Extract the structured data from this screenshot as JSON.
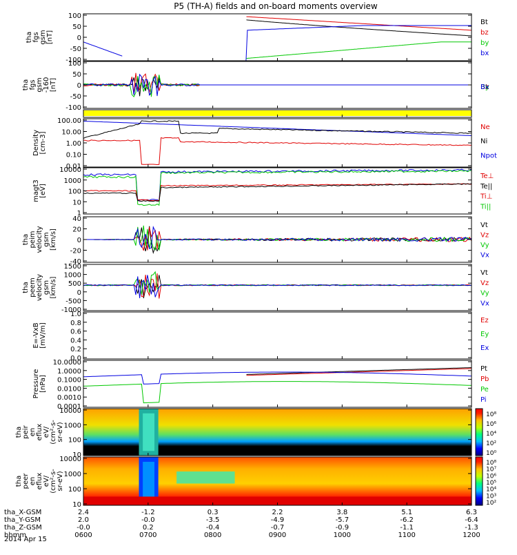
{
  "title": "P5 (TH-A) fields and on-board moments overview",
  "colors": {
    "black": "#000000",
    "red": "#e00000",
    "green": "#00c800",
    "blue": "#0000e0",
    "yellow": "#ffff00"
  },
  "panels": [
    {
      "ylabel": [
        "tha",
        "fgs",
        "gsm",
        "[nT]"
      ],
      "ticks": [
        "100",
        "50",
        "0",
        "-50",
        "-100"
      ],
      "legend": [
        {
          "t": "Bt",
          "c": "black"
        },
        {
          "t": "bz",
          "c": "red"
        },
        {
          "t": "by",
          "c": "green"
        },
        {
          "t": "bx",
          "c": "blue"
        }
      ]
    },
    {
      "ylabel": [
        "tha",
        "fgs",
        "gsm",
        "-160",
        "[nT]"
      ],
      "ticks": [
        "100",
        "50",
        "0",
        "-50",
        "-100"
      ],
      "legend": [
        {
          "t": "Bt",
          "c": "black"
        },
        {
          "t": "Bz",
          "c": "red"
        },
        {
          "t": "By",
          "c": "green"
        },
        {
          "t": "Bx",
          "c": "blue"
        }
      ]
    },
    {
      "ylabel": [],
      "ticks": [],
      "legend": []
    },
    {
      "ylabel": [
        "Density",
        "[cm-3]"
      ],
      "ticks": [
        "100.00",
        "10.00",
        "1.00",
        "0.10",
        "0.01"
      ],
      "legend": [
        {
          "t": "Ne",
          "c": "red"
        },
        {
          "t": "Ni",
          "c": "black"
        },
        {
          "t": "Npot",
          "c": "blue"
        }
      ]
    },
    {
      "ylabel": [
        "magt3",
        "[eV]"
      ],
      "ticks": [
        "10000",
        "1000",
        "100",
        "10",
        "1"
      ],
      "legend": [
        {
          "t": "Te⊥",
          "c": "red"
        },
        {
          "t": "Te||",
          "c": "black"
        },
        {
          "t": "Ti⊥",
          "c": "red"
        },
        {
          "t": "Ti||",
          "c": "green"
        }
      ]
    },
    {
      "ylabel": [
        "tha",
        "peim",
        "velocity",
        "gsm",
        "[km/s]"
      ],
      "ticks": [
        "40",
        "20",
        "0",
        "-20",
        "-40"
      ],
      "legend": [
        {
          "t": "Vt",
          "c": "black"
        },
        {
          "t": "Vz",
          "c": "red"
        },
        {
          "t": "Vy",
          "c": "green"
        },
        {
          "t": "Vx",
          "c": "blue"
        }
      ]
    },
    {
      "ylabel": [
        "tha",
        "peem",
        "velocity",
        "gsm",
        "[km/s]"
      ],
      "ticks": [
        "1500",
        "1000",
        "500",
        "0",
        "-500",
        "-1000"
      ],
      "legend": [
        {
          "t": "Vt",
          "c": "black"
        },
        {
          "t": "Vz",
          "c": "red"
        },
        {
          "t": "Vy",
          "c": "green"
        },
        {
          "t": "Vx",
          "c": "blue"
        }
      ]
    },
    {
      "ylabel": [
        "E=-VxB",
        "[mV/m]"
      ],
      "ticks": [
        "1.0",
        "0.8",
        "0.6",
        "0.4",
        "0.2",
        "0.0"
      ],
      "legend": [
        {
          "t": "Ez",
          "c": "red"
        },
        {
          "t": "Ey",
          "c": "green"
        },
        {
          "t": "Ex",
          "c": "blue"
        }
      ]
    },
    {
      "ylabel": [
        "Pressure",
        "[nPa]"
      ],
      "ticks": [
        "10.0000",
        "1.0000",
        "0.1000",
        "0.0100",
        "0.0010",
        "0.0001"
      ],
      "legend": [
        {
          "t": "Pt",
          "c": "black"
        },
        {
          "t": "Pb",
          "c": "red"
        },
        {
          "t": "Pe",
          "c": "green"
        },
        {
          "t": "Pi",
          "c": "blue"
        }
      ]
    },
    {
      "ylabel": [
        "tha",
        "peir",
        "en",
        "eflux",
        "eV/",
        "(cm²-s-",
        "sr-eV)"
      ],
      "ticks": [
        "10000",
        "1000",
        "100",
        "10"
      ],
      "cbar": [
        "10⁸",
        "10⁶",
        "10⁴",
        "10²",
        "10⁰"
      ]
    },
    {
      "ylabel": [
        "tha",
        "peer",
        "en",
        "eflux",
        "eV/",
        "(cm²-s-",
        "sr-eV)"
      ],
      "ticks": [
        "10000",
        "1000",
        "100",
        "10"
      ],
      "cbar": [
        "10⁸",
        "10⁷",
        "10⁶",
        "10⁵",
        "10⁴",
        "10³",
        "10²"
      ]
    }
  ],
  "xaxis": {
    "rows": [
      {
        "label": "tha_X-GSM",
        "vals": [
          "2.4",
          "-1.2",
          "0.3",
          "2.2",
          "3.8",
          "5.1",
          "6.3"
        ]
      },
      {
        "label": "tha_Y-GSM",
        "vals": [
          "2.0",
          "-0.0",
          "-3.5",
          "-4.9",
          "-5.7",
          "-6.2",
          "-6.4"
        ]
      },
      {
        "label": "tha_Z-GSM",
        "vals": [
          "-0.0",
          "0.2",
          "-0.4",
          "-0.7",
          "-0.9",
          "-1.1",
          "-1.3"
        ]
      },
      {
        "label": "hhmm",
        "vals": [
          "0600",
          "0700",
          "0800",
          "0900",
          "1000",
          "1100",
          "1200"
        ]
      }
    ],
    "date": "2014 Apr 15"
  }
}
